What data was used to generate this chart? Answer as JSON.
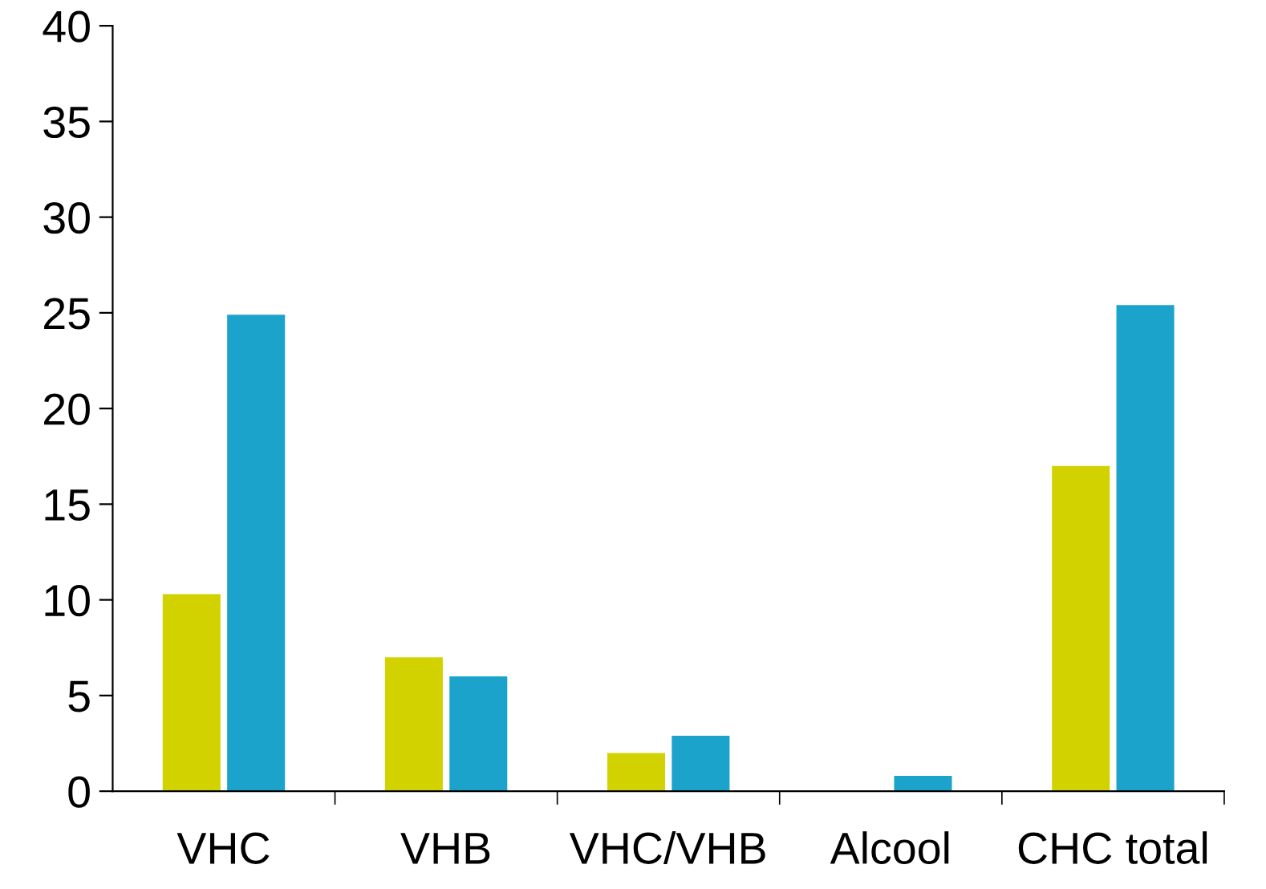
{
  "chart_data": {
    "type": "bar",
    "categories": [
      "VHC",
      "VHB",
      "VHC/VHB",
      "Alcool",
      "CHC total"
    ],
    "series": [
      {
        "color": "#d2d200",
        "values": [
          10.3,
          7.0,
          2.0,
          null,
          17.0
        ]
      },
      {
        "color": "#1ba3cc",
        "values": [
          24.9,
          6.0,
          2.9,
          0.8,
          25.4
        ]
      }
    ],
    "ylim": [
      0,
      40
    ],
    "yticks": [
      0,
      5,
      10,
      15,
      20,
      25,
      30,
      35,
      40
    ],
    "grid": false,
    "legend": false
  }
}
